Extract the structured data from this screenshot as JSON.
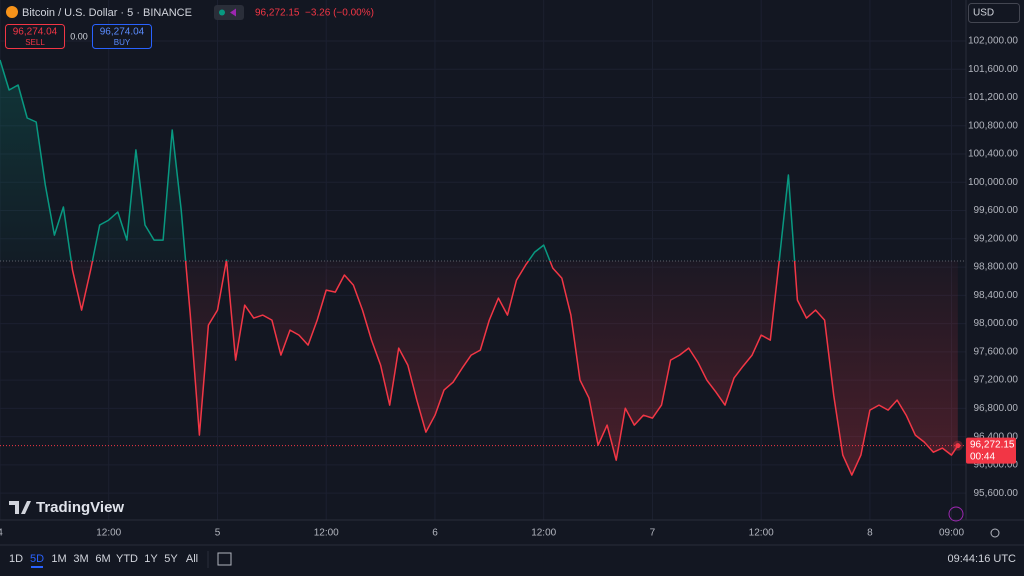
{
  "header": {
    "symbol": "Bitcoin / U.S. Dollar · 5 · BINANCE",
    "price": "96,272.15",
    "change": "−3.26 (−0.00%)",
    "sell_price": "96,274.04",
    "sell": "SELL",
    "spread": "0.00",
    "buy_price": "96,274.04",
    "buy": "BUY",
    "currency": "USD",
    "logo": "TradingView"
  },
  "toolbar": {
    "ranges": [
      "1D",
      "5D",
      "1M",
      "3M",
      "6M",
      "YTD",
      "1Y",
      "5Y",
      "All"
    ],
    "clock": "09:44:16 UTC"
  },
  "chart_data": {
    "type": "baseline",
    "x": [
      0,
      1,
      2,
      3,
      4,
      5,
      6,
      7,
      8,
      9,
      10,
      11,
      12,
      13,
      14,
      15,
      16,
      17,
      18,
      19,
      20,
      21,
      22,
      23,
      24,
      25,
      26,
      27,
      28,
      29,
      30,
      31,
      32,
      33,
      34,
      35,
      36,
      37,
      38,
      39,
      40,
      41,
      42,
      43,
      44,
      45,
      46,
      47,
      48,
      49,
      50,
      51,
      52,
      53,
      54,
      55,
      56,
      57,
      58,
      59,
      60,
      61,
      62,
      63,
      64,
      65,
      66,
      67,
      68,
      69,
      70,
      71,
      72,
      73,
      74,
      75,
      76,
      77,
      78,
      79,
      80,
      81,
      82,
      83,
      84,
      85,
      86,
      87,
      88,
      89,
      90,
      91,
      92,
      93,
      94,
      95,
      96,
      97,
      98,
      99,
      100,
      101,
      102,
      103,
      104,
      105,
      105.7
    ],
    "values": [
      101731,
      101306,
      101377,
      100910,
      100853,
      99961,
      99253,
      99650,
      98757,
      98191,
      98757,
      99395,
      99465,
      99579,
      99182,
      100459,
      99395,
      99182,
      99182,
      100740,
      99607,
      98120,
      96421,
      97979,
      98191,
      98899,
      97483,
      98262,
      98078,
      98120,
      98050,
      97554,
      97908,
      97837,
      97695,
      98050,
      98474,
      98446,
      98687,
      98545,
      98191,
      97766,
      97412,
      96846,
      97653,
      97412,
      96917,
      96463,
      96704,
      97058,
      97171,
      97370,
      97554,
      97625,
      98050,
      98361,
      98120,
      98616,
      98828,
      99012,
      99111,
      98786,
      98644,
      98120,
      97200,
      96945,
      96279,
      96563,
      96067,
      96803,
      96563,
      96704,
      96662,
      96846,
      97483,
      97554,
      97653,
      97455,
      97200,
      97030,
      96846,
      97228,
      97398,
      97554,
      97837,
      97766,
      98899,
      100103,
      98333,
      98078,
      98191,
      98050,
      96987,
      96138,
      95855,
      96138,
      96775,
      96846,
      96775,
      96917,
      96704,
      96421,
      96322,
      96180,
      96237,
      96138,
      96272
    ],
    "baseline": 98885,
    "color_above": "#089981",
    "color_below": "#f23645",
    "last_price": {
      "value": 96272.15,
      "label": "96,272.15"
    },
    "countdown": "00:44",
    "xlim": [
      0,
      106.6
    ],
    "ylim": [
      95220,
      102580
    ],
    "xticks": [
      {
        "value": 0,
        "label": "4"
      },
      {
        "value": 12,
        "label": "12:00"
      },
      {
        "value": 24,
        "label": "5"
      },
      {
        "value": 36,
        "label": "12:00"
      },
      {
        "value": 48,
        "label": "6"
      },
      {
        "value": 60,
        "label": "12:00"
      },
      {
        "value": 72,
        "label": "7"
      },
      {
        "value": 84,
        "label": "12:00"
      },
      {
        "value": 96,
        "label": "8"
      },
      {
        "value": 105,
        "label": "09:00"
      }
    ],
    "yticks": [
      {
        "value": 95600,
        "label": "95,600.00"
      },
      {
        "value": 96000,
        "label": "96,000.00"
      },
      {
        "value": 96400,
        "label": "96,400.00"
      },
      {
        "value": 96800,
        "label": "96,800.00"
      },
      {
        "value": 97200,
        "label": "97,200.00"
      },
      {
        "value": 97600,
        "label": "97,600.00"
      },
      {
        "value": 98000,
        "label": "98,000.00"
      },
      {
        "value": 98400,
        "label": "98,400.00"
      },
      {
        "value": 98800,
        "label": "98,800.00"
      },
      {
        "value": 99200,
        "label": "99,200.00"
      },
      {
        "value": 99600,
        "label": "99,600.00"
      },
      {
        "value": 100000,
        "label": "100,000.00"
      },
      {
        "value": 100400,
        "label": "100,400.00"
      },
      {
        "value": 100800,
        "label": "100,800.00"
      },
      {
        "value": 101200,
        "label": "101,200.00"
      },
      {
        "value": 101600,
        "label": "101,600.00"
      },
      {
        "value": 102000,
        "label": "102,000.00"
      }
    ],
    "grid": true
  }
}
